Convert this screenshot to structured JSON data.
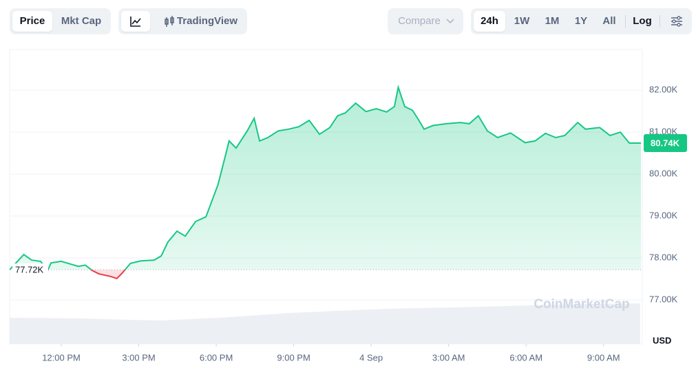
{
  "toolbar": {
    "tabs": [
      "Price",
      "Mkt Cap"
    ],
    "view": "TradingView",
    "compare": "Compare",
    "ranges": [
      "24h",
      "1W",
      "1M",
      "1Y",
      "All"
    ],
    "log": "Log"
  },
  "chart_data": {
    "type": "line",
    "watermark": "CoinMarketCap",
    "y_label": "USD",
    "color": "#16c784",
    "below_color": "#ea3943",
    "x": [
      10.0,
      10.55,
      10.85,
      11.2,
      11.47,
      11.6,
      12.0,
      12.27,
      12.66,
      12.93,
      13.2,
      13.46,
      13.9,
      14.15,
      14.36,
      14.68,
      15.08,
      15.6,
      15.87,
      16.13,
      16.48,
      16.8,
      17.2,
      17.6,
      17.85,
      18.07,
      18.33,
      18.5,
      18.77,
      19.2,
      19.47,
      19.68,
      20.0,
      20.4,
      20.8,
      21.2,
      21.6,
      22.0,
      22.4,
      22.7,
      23.0,
      23.4,
      23.8,
      24.2,
      24.6,
      24.9,
      25.05,
      25.3,
      25.6,
      25.85,
      26.05,
      26.4,
      26.9,
      27.45,
      27.8,
      28.15,
      28.5,
      28.9,
      29.4,
      29.96,
      30.35,
      30.75,
      31.15,
      31.5,
      32.0,
      32.3,
      32.85,
      33.25,
      33.65,
      34.0,
      34.45
    ],
    "values": [
      77.72,
      78.08,
      77.95,
      77.92,
      77.69,
      77.88,
      77.92,
      77.87,
      77.8,
      77.83,
      77.7,
      77.62,
      77.56,
      77.51,
      77.64,
      77.87,
      77.93,
      77.95,
      78.05,
      78.38,
      78.64,
      78.52,
      78.87,
      78.98,
      79.39,
      79.75,
      80.38,
      80.79,
      80.62,
      81.03,
      81.33,
      80.79,
      80.87,
      81.03,
      81.07,
      81.13,
      81.28,
      80.95,
      81.11,
      81.39,
      81.46,
      81.69,
      81.49,
      81.56,
      81.48,
      81.61,
      82.07,
      81.61,
      81.52,
      81.28,
      81.07,
      81.16,
      81.2,
      81.23,
      81.2,
      81.39,
      81.03,
      80.87,
      80.98,
      80.75,
      80.79,
      80.97,
      80.87,
      80.92,
      81.23,
      81.07,
      81.11,
      80.92,
      81.0,
      80.74,
      80.74
    ],
    "baseline": 77.72,
    "baseline_label": "77.72K",
    "last_label": "80.74K",
    "xlim": [
      10,
      34.5
    ],
    "xticks": [
      {
        "value": 12,
        "label": "12:00 PM"
      },
      {
        "value": 15,
        "label": "3:00 PM"
      },
      {
        "value": 18,
        "label": "6:00 PM"
      },
      {
        "value": 21,
        "label": "9:00 PM"
      },
      {
        "value": 24,
        "label": "4 Sep"
      },
      {
        "value": 27,
        "label": "3:00 AM"
      },
      {
        "value": 30,
        "label": "6:00 AM"
      },
      {
        "value": 33,
        "label": "9:00 AM"
      }
    ],
    "ylim": [
      75.95,
      82.97
    ],
    "yticks": [
      {
        "value": 77,
        "label": "77.00K"
      },
      {
        "value": 78,
        "label": "78.00K"
      },
      {
        "value": 79,
        "label": "79.00K"
      },
      {
        "value": 80,
        "label": "80.00K"
      },
      {
        "value": 81,
        "label": "81.00K"
      },
      {
        "value": 82,
        "label": "82.00K"
      }
    ],
    "grid": true
  }
}
